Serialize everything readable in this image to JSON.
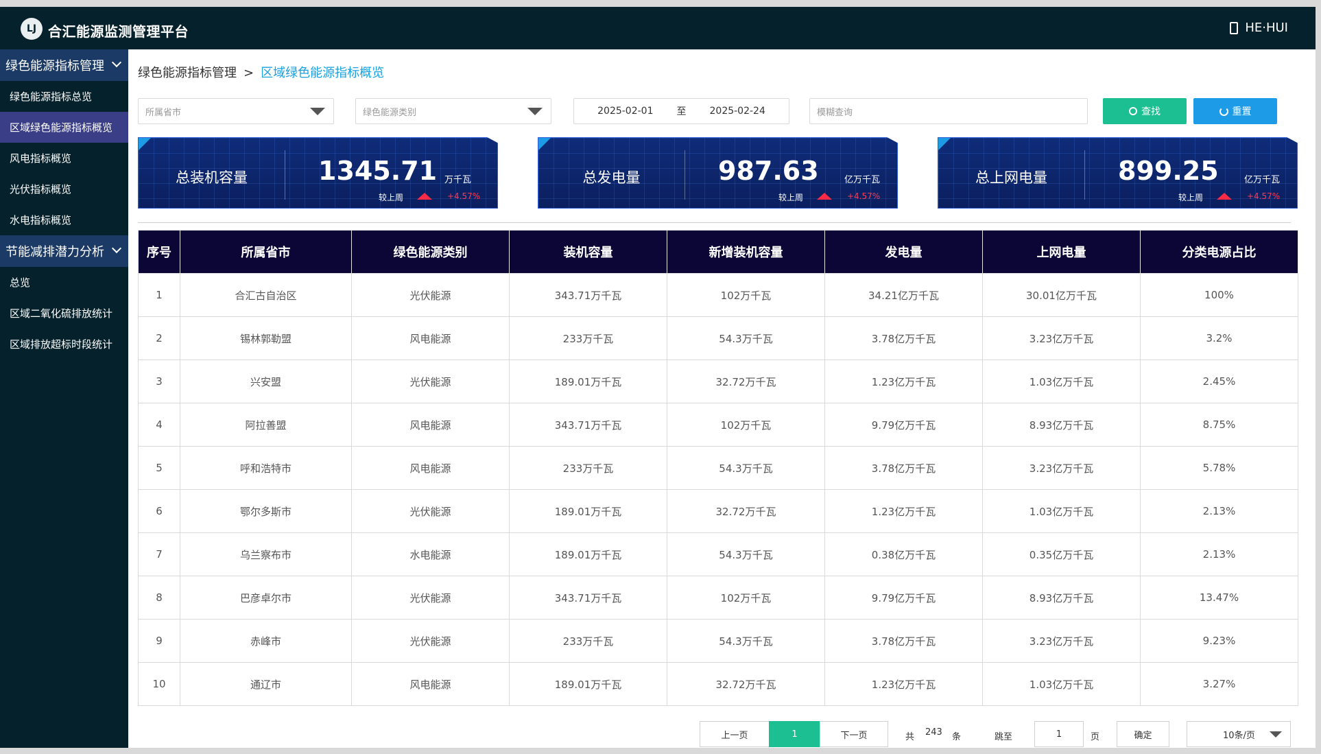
{
  "header": {
    "logo_text": "LJ",
    "title": "合汇能源监测管理平台",
    "user": "HE·HUI"
  },
  "sidebar": {
    "groups": [
      {
        "label": "绿色能源指标管理",
        "items": [
          "绿色能源指标总览",
          "区域绿色能源指标概览",
          "风电指标概览",
          "光伏指标概览",
          "水电指标概览"
        ]
      },
      {
        "label": "节能减排潜力分析",
        "items": [
          "总览",
          "区域二氧化硫排放统计",
          "区域排放超标时段统计"
        ]
      }
    ],
    "active": "区域绿色能源指标概览"
  },
  "breadcrumb": {
    "parent": "绿色能源指标管理",
    "separator": ">",
    "current": "区域绿色能源指标概览"
  },
  "filters": {
    "province_placeholder": "所属省市",
    "category_placeholder": "绿色能源类别",
    "date_start": "2025-02-01",
    "date_sep": "至",
    "date_end": "2025-02-24",
    "search_placeholder": "模糊查询",
    "search_label": "查找",
    "reset_label": "重置"
  },
  "stats": [
    {
      "label": "总装机容量",
      "value": "1345.71",
      "unit": "万千瓦",
      "compare": "较上周",
      "change": "+4.57%"
    },
    {
      "label": "总发电量",
      "value": "987.63",
      "unit": "亿万千瓦",
      "compare": "较上周",
      "change": "+4.57%"
    },
    {
      "label": "总上网电量",
      "value": "899.25",
      "unit": "亿万千瓦",
      "compare": "较上周",
      "change": "+4.57%"
    }
  ],
  "table": {
    "columns": [
      "序号",
      "所属省市",
      "绿色能源类别",
      "装机容量",
      "新增装机容量",
      "发电量",
      "上网电量",
      "分类电源占比"
    ],
    "rows": [
      [
        "1",
        "合汇古自治区",
        "光伏能源",
        "343.71万千瓦",
        "102万千瓦",
        "34.21亿万千瓦",
        "30.01亿万千瓦",
        "100%"
      ],
      [
        "2",
        "锡林郭勒盟",
        "风电能源",
        "233万千瓦",
        "54.3万千瓦",
        "3.78亿万千瓦",
        "3.23亿万千瓦",
        "3.2%"
      ],
      [
        "3",
        "兴安盟",
        "光伏能源",
        "189.01万千瓦",
        "32.72万千瓦",
        "1.23亿万千瓦",
        "1.03亿万千瓦",
        "2.45%"
      ],
      [
        "4",
        "阿拉善盟",
        "风电能源",
        "343.71万千瓦",
        "102万千瓦",
        "9.79亿万千瓦",
        "8.93亿万千瓦",
        "8.75%"
      ],
      [
        "5",
        "呼和浩特市",
        "风电能源",
        "233万千瓦",
        "54.3万千瓦",
        "3.78亿万千瓦",
        "3.23亿万千瓦",
        "5.78%"
      ],
      [
        "6",
        "鄂尔多斯市",
        "光伏能源",
        "189.01万千瓦",
        "32.72万千瓦",
        "1.23亿万千瓦",
        "1.03亿万千瓦",
        "2.13%"
      ],
      [
        "7",
        "乌兰察布市",
        "水电能源",
        "189.01万千瓦",
        "54.3万千瓦",
        "0.38亿万千瓦",
        "0.35亿万千瓦",
        "2.13%"
      ],
      [
        "8",
        "巴彦卓尔市",
        "光伏能源",
        "343.71万千瓦",
        "102万千瓦",
        "9.79亿万千瓦",
        "8.93亿万千瓦",
        "13.47%"
      ],
      [
        "9",
        "赤峰市",
        "光伏能源",
        "233万千瓦",
        "54.3万千瓦",
        "3.78亿万千瓦",
        "3.23亿万千瓦",
        "9.23%"
      ],
      [
        "10",
        "通辽市",
        "风电能源",
        "189.01万千瓦",
        "32.72万千瓦",
        "1.23亿万千瓦",
        "1.03亿万千瓦",
        "3.27%"
      ]
    ]
  },
  "pagination": {
    "prev": "上一页",
    "current": "1",
    "next": "下一页",
    "total_prefix": "共",
    "total": "243",
    "total_suffix": "条",
    "jump_label": "跳至",
    "jump_value": "1",
    "page_suffix": "页",
    "confirm": "确定",
    "page_size": "10条/页"
  }
}
